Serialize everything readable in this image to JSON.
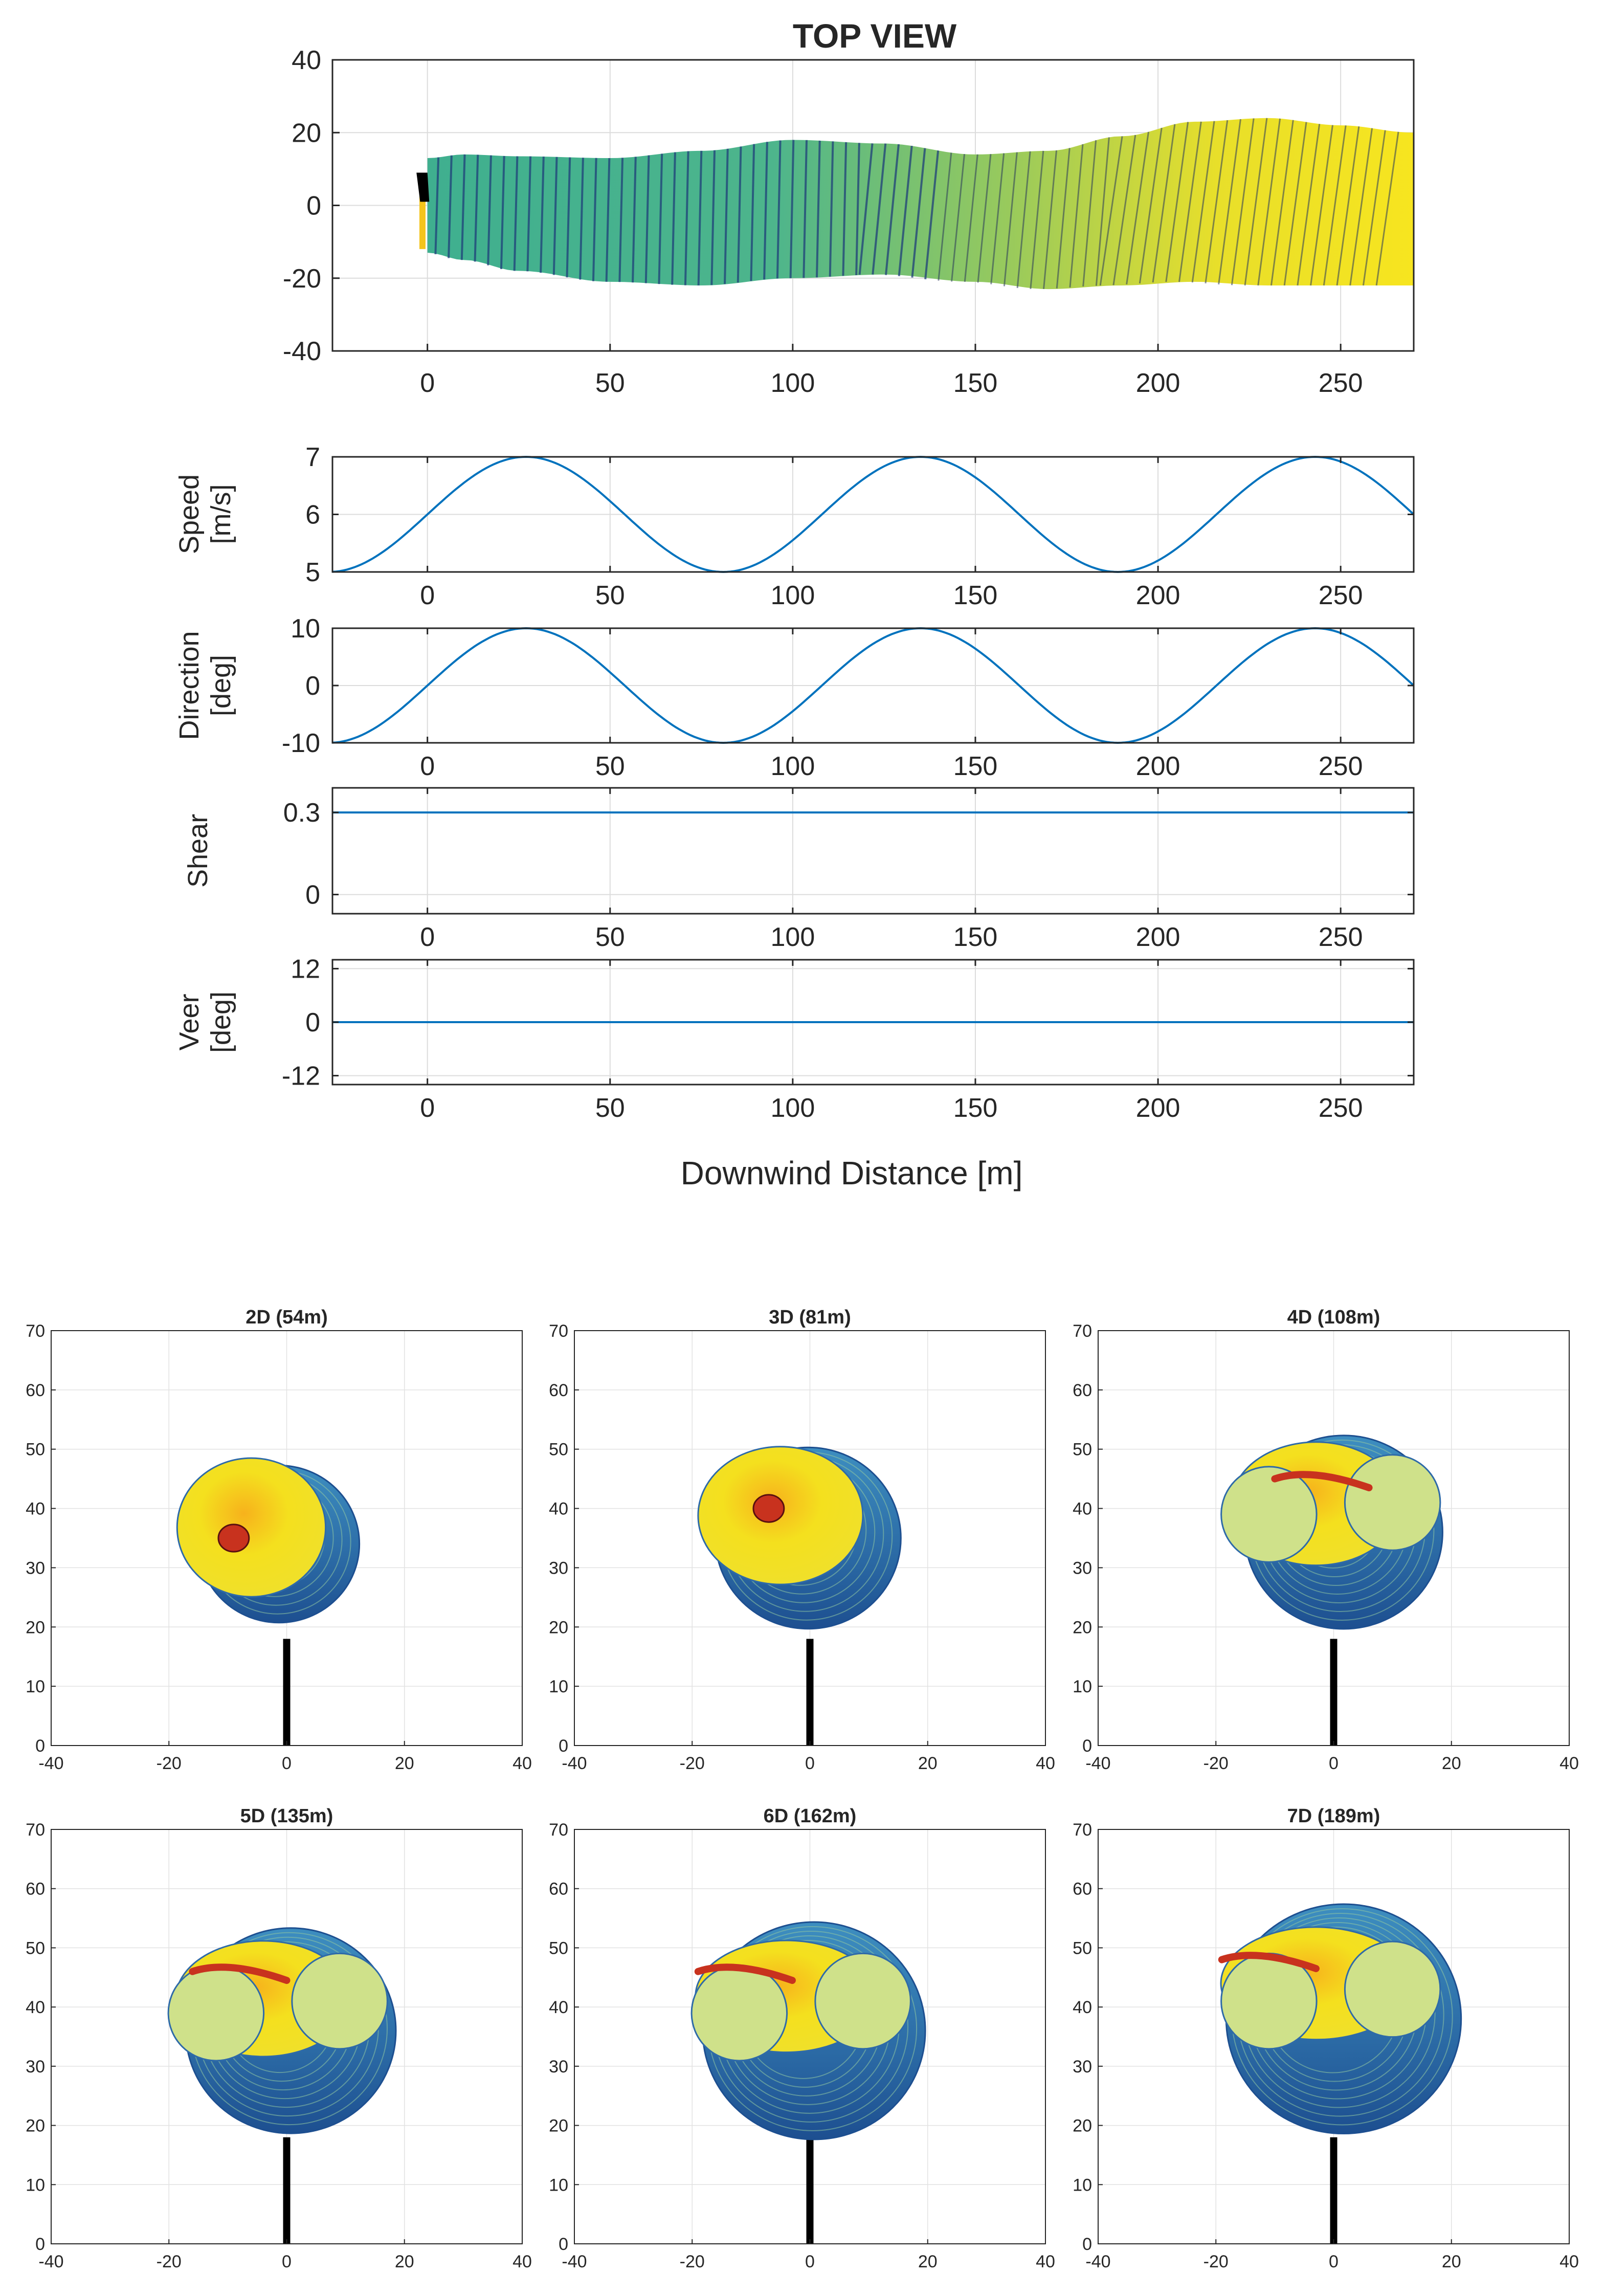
{
  "figure": {
    "top_view_title": "TOP VIEW",
    "shared_xlabel": "Downwind Distance [m]"
  },
  "colors": {
    "line": "#0072BD",
    "wake_yellow": "#F5E11E",
    "wake_green": "#55B88A",
    "wake_blue": "#2E6AA8",
    "wake_red": "#C8321E"
  },
  "chart_data": [
    {
      "id": "top_view",
      "type": "scatter",
      "title": "TOP VIEW",
      "xlabel": "",
      "ylabel": "",
      "xlim": [
        -26,
        270
      ],
      "ylim": [
        -40,
        40
      ],
      "xticks": [
        "0",
        "50",
        "100",
        "150",
        "200",
        "250"
      ],
      "yticks": [
        "40",
        "20",
        "0",
        "-20",
        "-40"
      ],
      "grid": true,
      "wake_envelope": {
        "x": [
          0,
          10,
          25,
          50,
          75,
          100,
          125,
          150,
          170,
          190,
          210,
          230,
          250,
          270
        ],
        "upper": [
          13,
          14,
          13.5,
          13,
          15,
          18,
          17,
          14,
          15,
          19,
          23,
          24,
          22,
          20
        ],
        "lower": [
          -13,
          -15,
          -18,
          -21,
          -22,
          -20,
          -19,
          -21,
          -23,
          -22,
          -21,
          -22,
          -22,
          -22
        ]
      }
    },
    {
      "id": "speed",
      "type": "line",
      "ylabel": "Speed\n[m/s]",
      "ylabel_lines": [
        "Speed",
        "[m/s]"
      ],
      "xlim": [
        -26,
        270
      ],
      "ylim": [
        5,
        7
      ],
      "xticks": [
        "0",
        "50",
        "100",
        "150",
        "200",
        "250"
      ],
      "yticks": [
        "7",
        "6",
        "5"
      ],
      "grid": true,
      "series": [
        {
          "name": "Speed",
          "mean": 6,
          "amplitude": 1,
          "period_m": 108,
          "phase_x0": 0
        }
      ]
    },
    {
      "id": "direction",
      "type": "line",
      "ylabel": "Direction\n[deg]",
      "ylabel_lines": [
        "Direction",
        "[deg]"
      ],
      "xlim": [
        -26,
        270
      ],
      "ylim": [
        -10,
        10
      ],
      "xticks": [
        "0",
        "50",
        "100",
        "150",
        "200",
        "250"
      ],
      "yticks": [
        "10",
        "0",
        "-10"
      ],
      "grid": true,
      "series": [
        {
          "name": "Direction",
          "mean": 0,
          "amplitude": 10,
          "period_m": 108,
          "phase_x0": 0
        }
      ]
    },
    {
      "id": "shear",
      "type": "line",
      "ylabel": "Shear",
      "ylabel_lines": [
        "Shear"
      ],
      "xlim": [
        -26,
        270
      ],
      "ylim": [
        -0.07,
        0.39
      ],
      "xticks": [
        "0",
        "50",
        "100",
        "150",
        "200",
        "250"
      ],
      "yticks": [
        "0.3",
        "0"
      ],
      "grid": true,
      "series": [
        {
          "name": "Shear",
          "value": 0.3
        }
      ]
    },
    {
      "id": "veer",
      "type": "line",
      "ylabel": "Veer\n[deg]",
      "ylabel_lines": [
        "Veer",
        "[deg]"
      ],
      "xlim": [
        -26,
        270
      ],
      "ylim": [
        -14,
        14
      ],
      "xticks": [
        "0",
        "50",
        "100",
        "150",
        "200",
        "250"
      ],
      "yticks": [
        "12",
        "0",
        "-12"
      ],
      "grid": true,
      "series": [
        {
          "name": "Veer",
          "value": 0
        }
      ]
    },
    {
      "id": "cross_sections",
      "type": "scatter",
      "xlim": [
        -40,
        40
      ],
      "ylim": [
        0,
        70
      ],
      "xticks": [
        "-40",
        "-20",
        "0",
        "20",
        "40"
      ],
      "yticks": [
        "70",
        "60",
        "50",
        "40",
        "30",
        "20",
        "10",
        "0"
      ],
      "grid": true,
      "panels": [
        {
          "title": "2D (54m)",
          "cx": -4,
          "cy": 36,
          "r": 13,
          "roll": 0.2,
          "core": [
            -9,
            35
          ]
        },
        {
          "title": "3D (81m)",
          "cx": -3,
          "cy": 37,
          "r": 15,
          "roll": 0.45,
          "core": [
            -7,
            40
          ]
        },
        {
          "title": "4D (108m)",
          "cx": -1,
          "cy": 38,
          "r": 16,
          "roll": 0.7,
          "core": [
            -6,
            45
          ]
        },
        {
          "title": "5D (135m)",
          "cx": -2,
          "cy": 38,
          "r": 17,
          "roll": 0.85,
          "core": [
            -12,
            46
          ]
        },
        {
          "title": "6D (162m)",
          "cx": -2,
          "cy": 38,
          "r": 18,
          "roll": 0.95,
          "core": [
            -15,
            46
          ]
        },
        {
          "title": "7D (189m)",
          "cx": -1,
          "cy": 40,
          "r": 19,
          "roll": 1.0,
          "core": [
            -15,
            48
          ]
        }
      ],
      "tower": {
        "x": 0,
        "y0": 0,
        "y1": 18
      }
    }
  ]
}
